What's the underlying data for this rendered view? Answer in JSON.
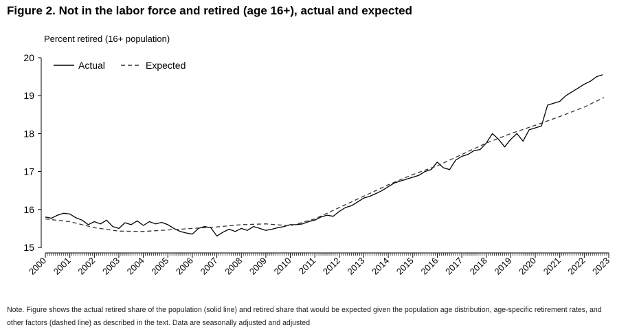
{
  "figure": {
    "title": "Figure 2.  Not in the labor force and retired (age 16+), actual and expected",
    "note": "Note. Figure shows the actual retired share of the population (solid line) and retired share that would be expected given the population age distribution, age-specific retirement rates, and other factors (dashed line) as described in the text.  Data are seasonally adjusted and adjusted"
  },
  "colors": {
    "actual": "#000000",
    "expected": "#333333",
    "axis": "#000000"
  },
  "chart_data": {
    "type": "line",
    "title": "Figure 2.  Not in the labor force and retired (age 16+), actual and expected",
    "ylabel": "Percent retired (16+ population)",
    "xlabel": "",
    "xlim": [
      2000,
      2023
    ],
    "ylim": [
      15,
      20
    ],
    "yticks": [
      15,
      16,
      17,
      18,
      19,
      20
    ],
    "xticks": [
      "2000",
      "2001",
      "2002",
      "2003",
      "2004",
      "2005",
      "2006",
      "2007",
      "2008",
      "2009",
      "2010",
      "2011",
      "2012",
      "2013",
      "2014",
      "2015",
      "2016",
      "2017",
      "2018",
      "2019",
      "2020",
      "2021",
      "2022",
      "2023"
    ],
    "grid": false,
    "legend": "top-left",
    "series": [
      {
        "name": "Actual",
        "style": "solid",
        "x": [
          2000.0,
          2000.25,
          2000.5,
          2000.75,
          2001.0,
          2001.25,
          2001.5,
          2001.75,
          2002.0,
          2002.25,
          2002.5,
          2002.75,
          2003.0,
          2003.25,
          2003.5,
          2003.75,
          2004.0,
          2004.25,
          2004.5,
          2004.75,
          2005.0,
          2005.25,
          2005.5,
          2005.75,
          2006.0,
          2006.25,
          2006.5,
          2006.75,
          2007.0,
          2007.25,
          2007.5,
          2007.75,
          2008.0,
          2008.25,
          2008.5,
          2008.75,
          2009.0,
          2009.25,
          2009.5,
          2009.75,
          2010.0,
          2010.25,
          2010.5,
          2010.75,
          2011.0,
          2011.25,
          2011.5,
          2011.75,
          2012.0,
          2012.25,
          2012.5,
          2012.75,
          2013.0,
          2013.25,
          2013.5,
          2013.75,
          2014.0,
          2014.25,
          2014.5,
          2014.75,
          2015.0,
          2015.25,
          2015.5,
          2015.75,
          2016.0,
          2016.25,
          2016.5,
          2016.75,
          2017.0,
          2017.25,
          2017.5,
          2017.75,
          2018.0,
          2018.25,
          2018.5,
          2018.75,
          2019.0,
          2019.25,
          2019.5,
          2019.75,
          2020.0,
          2020.25,
          2020.5,
          2020.75,
          2021.0,
          2021.25,
          2021.5,
          2021.75,
          2022.0,
          2022.25,
          2022.5,
          2022.75
        ],
        "values": [
          15.8,
          15.77,
          15.85,
          15.9,
          15.88,
          15.78,
          15.72,
          15.6,
          15.68,
          15.62,
          15.72,
          15.55,
          15.5,
          15.65,
          15.6,
          15.7,
          15.58,
          15.68,
          15.62,
          15.66,
          15.6,
          15.5,
          15.42,
          15.38,
          15.35,
          15.5,
          15.55,
          15.52,
          15.3,
          15.4,
          15.48,
          15.42,
          15.5,
          15.45,
          15.55,
          15.5,
          15.45,
          15.48,
          15.52,
          15.55,
          15.6,
          15.6,
          15.62,
          15.68,
          15.72,
          15.8,
          15.85,
          15.82,
          15.95,
          16.05,
          16.1,
          16.2,
          16.3,
          16.35,
          16.42,
          16.5,
          16.6,
          16.7,
          16.75,
          16.8,
          16.85,
          16.9,
          17.0,
          17.05,
          17.25,
          17.1,
          17.05,
          17.3,
          17.4,
          17.45,
          17.55,
          17.58,
          17.75,
          18.0,
          17.85,
          17.65,
          17.85,
          18.0,
          17.8,
          18.1,
          18.15,
          18.2,
          18.75,
          18.8,
          18.85,
          19.0,
          19.1,
          19.2,
          19.3,
          19.38,
          19.5,
          19.55
        ]
      },
      {
        "name": "Expected",
        "style": "dashed",
        "x": [
          2000,
          2001,
          2002,
          2003,
          2004,
          2005,
          2006,
          2007,
          2008,
          2009,
          2010,
          2011,
          2012,
          2013,
          2014,
          2015,
          2016,
          2017,
          2018,
          2019,
          2020,
          2021,
          2022,
          2022.8
        ],
        "values": [
          15.75,
          15.68,
          15.52,
          15.43,
          15.42,
          15.46,
          15.5,
          15.54,
          15.6,
          15.62,
          15.57,
          15.75,
          16.05,
          16.35,
          16.65,
          16.92,
          17.15,
          17.45,
          17.75,
          18.0,
          18.22,
          18.45,
          18.7,
          18.95
        ]
      }
    ]
  }
}
